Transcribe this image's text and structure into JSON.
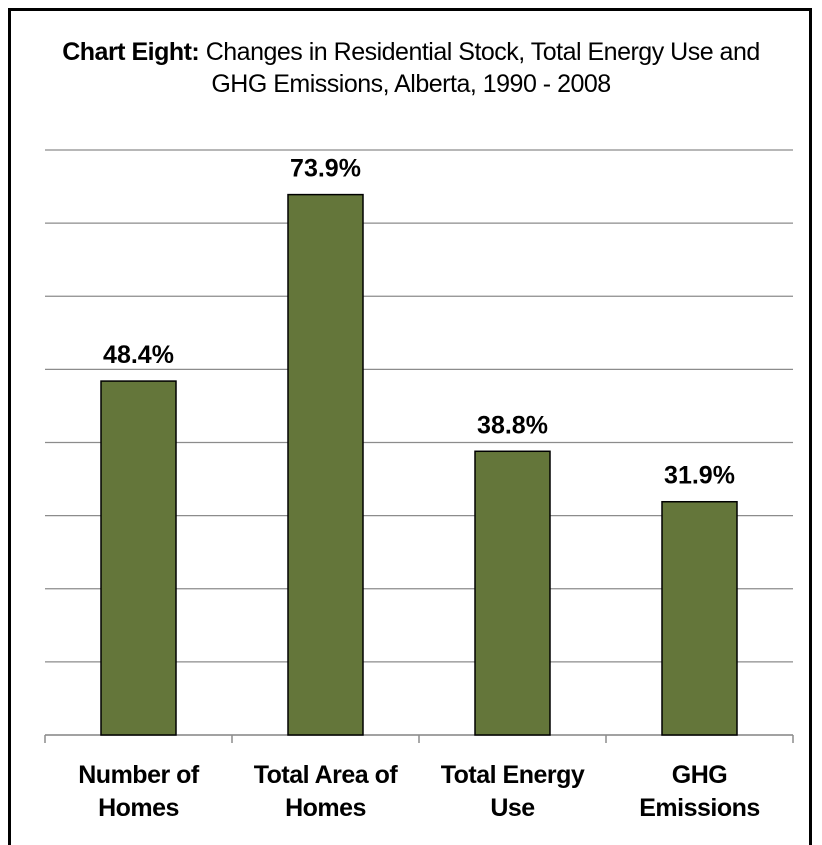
{
  "chart_data": {
    "type": "bar",
    "title_label": "Chart Eight:",
    "title": "Changes in Residential Stock, Total Energy Use and GHG Emissions, Alberta, 1990 - 2008",
    "categories": [
      "Number of Homes",
      "Total Area of Homes",
      "Total Energy Use",
      "GHG Emissions"
    ],
    "values": [
      48.4,
      73.9,
      38.8,
      31.9
    ],
    "value_labels": [
      "48.4%",
      "73.9%",
      "38.8%",
      "31.9%"
    ],
    "color": "#64763a",
    "ylim": [
      0,
      80
    ],
    "yticks": [
      0,
      10,
      20,
      30,
      40,
      50,
      60,
      70,
      80
    ],
    "grid": true
  }
}
